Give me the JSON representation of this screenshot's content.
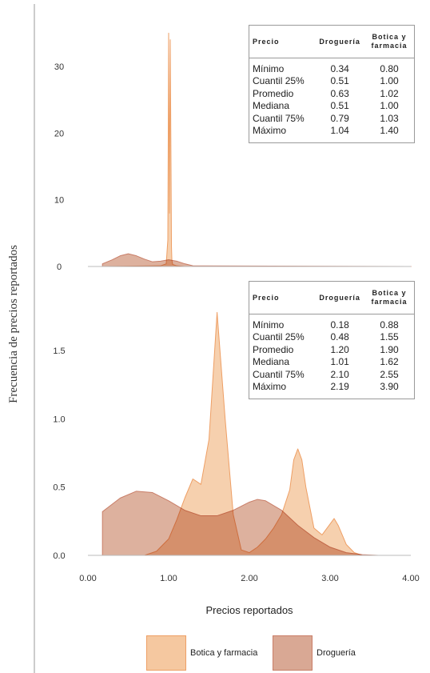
{
  "y_axis_label": "Frecuencia de precios reportados",
  "x_axis_label": "Precios reportados",
  "colors": {
    "botica_fill": "#f5c8a0",
    "botica_stroke": "#ee9f65",
    "drogueria_fill": "#d9a894",
    "drogueria_stroke": "#c97e68",
    "overlap": "#d4966c"
  },
  "legend": [
    {
      "label": "Botica y farmacia",
      "series": "botica"
    },
    {
      "label": "Droguería",
      "series": "drogueria"
    }
  ],
  "tables": [
    {
      "headers": [
        "Precio",
        "Droguería",
        "Botica y farmacia"
      ],
      "rows": [
        [
          "Mínimo",
          "0.34",
          "0.80"
        ],
        [
          "Cuantil 25%",
          "0.51",
          "1.00"
        ],
        [
          "Promedio",
          "0.63",
          "1.02"
        ],
        [
          "Mediana",
          "0.51",
          "1.00"
        ],
        [
          "Cuantil 75%",
          "0.79",
          "1.03"
        ],
        [
          "Máximo",
          "1.04",
          "1.40"
        ]
      ]
    },
    {
      "headers": [
        "Precio",
        "Droguería",
        "Botica y farmacia"
      ],
      "rows": [
        [
          "Mínimo",
          "0.18",
          "0.88"
        ],
        [
          "Cuantil 25%",
          "0.48",
          "1.55"
        ],
        [
          "Promedio",
          "1.20",
          "1.90"
        ],
        [
          "Mediana",
          "1.01",
          "1.62"
        ],
        [
          "Cuantil 75%",
          "2.10",
          "2.55"
        ],
        [
          "Máximo",
          "2.19",
          "3.90"
        ]
      ]
    }
  ],
  "chart_data": [
    {
      "type": "area",
      "xlim": [
        0.0,
        4.0
      ],
      "ylim": [
        0,
        36
      ],
      "yticks": [
        0,
        10,
        20,
        30
      ],
      "xticks": [],
      "series": [
        {
          "name": "Botica y farmacia",
          "key": "botica",
          "x": [
            0.18,
            0.9,
            0.97,
            0.99,
            1.0,
            1.01,
            1.02,
            1.03,
            1.035,
            1.04,
            1.05,
            1.1,
            1.2,
            4.0
          ],
          "y": [
            0.0,
            0.1,
            0.4,
            4.0,
            35.0,
            8.0,
            34.0,
            14.0,
            3.0,
            1.0,
            0.3,
            0.1,
            0.0,
            0.0
          ]
        },
        {
          "name": "Droguería",
          "key": "drogueria",
          "x": [
            0.18,
            0.3,
            0.4,
            0.5,
            0.6,
            0.7,
            0.8,
            0.9,
            1.0,
            1.1,
            1.2,
            1.3,
            4.0
          ],
          "y": [
            0.4,
            1.0,
            1.6,
            1.9,
            1.6,
            1.1,
            0.7,
            0.8,
            1.0,
            0.8,
            0.4,
            0.1,
            0.0
          ]
        }
      ]
    },
    {
      "type": "area",
      "xlim": [
        0.0,
        4.0
      ],
      "ylim": [
        0,
        1.8
      ],
      "yticks": [
        0.0,
        0.5,
        1.0,
        1.5
      ],
      "ytick_labels": [
        "0.0",
        "0.5",
        "1.0",
        "1.5"
      ],
      "xticks": [
        0.0,
        1.0,
        2.0,
        3.0,
        4.0
      ],
      "xtick_labels": [
        "0.00",
        "1.00",
        "2.00",
        "3.00",
        "4.00"
      ],
      "series": [
        {
          "name": "Botica y farmacia",
          "key": "botica",
          "x": [
            0.7,
            0.85,
            1.0,
            1.1,
            1.2,
            1.3,
            1.4,
            1.5,
            1.6,
            1.7,
            1.8,
            1.9,
            2.0,
            2.1,
            2.2,
            2.3,
            2.4,
            2.5,
            2.55,
            2.6,
            2.65,
            2.7,
            2.8,
            2.9,
            3.0,
            3.05,
            3.1,
            3.2,
            3.3,
            3.4
          ],
          "y": [
            0.0,
            0.03,
            0.12,
            0.26,
            0.42,
            0.56,
            0.52,
            0.85,
            1.78,
            1.0,
            0.3,
            0.04,
            0.02,
            0.06,
            0.12,
            0.2,
            0.3,
            0.48,
            0.7,
            0.78,
            0.7,
            0.5,
            0.2,
            0.15,
            0.23,
            0.27,
            0.22,
            0.08,
            0.02,
            0.0
          ]
        },
        {
          "name": "Droguería",
          "key": "drogueria",
          "x": [
            0.18,
            0.4,
            0.6,
            0.8,
            1.0,
            1.2,
            1.4,
            1.6,
            1.8,
            2.0,
            2.1,
            2.2,
            2.4,
            2.6,
            2.8,
            3.0,
            3.2,
            3.4,
            3.6
          ],
          "y": [
            0.32,
            0.42,
            0.47,
            0.46,
            0.4,
            0.33,
            0.29,
            0.29,
            0.33,
            0.39,
            0.41,
            0.4,
            0.33,
            0.22,
            0.13,
            0.06,
            0.02,
            0.005,
            0.0
          ]
        }
      ]
    }
  ]
}
